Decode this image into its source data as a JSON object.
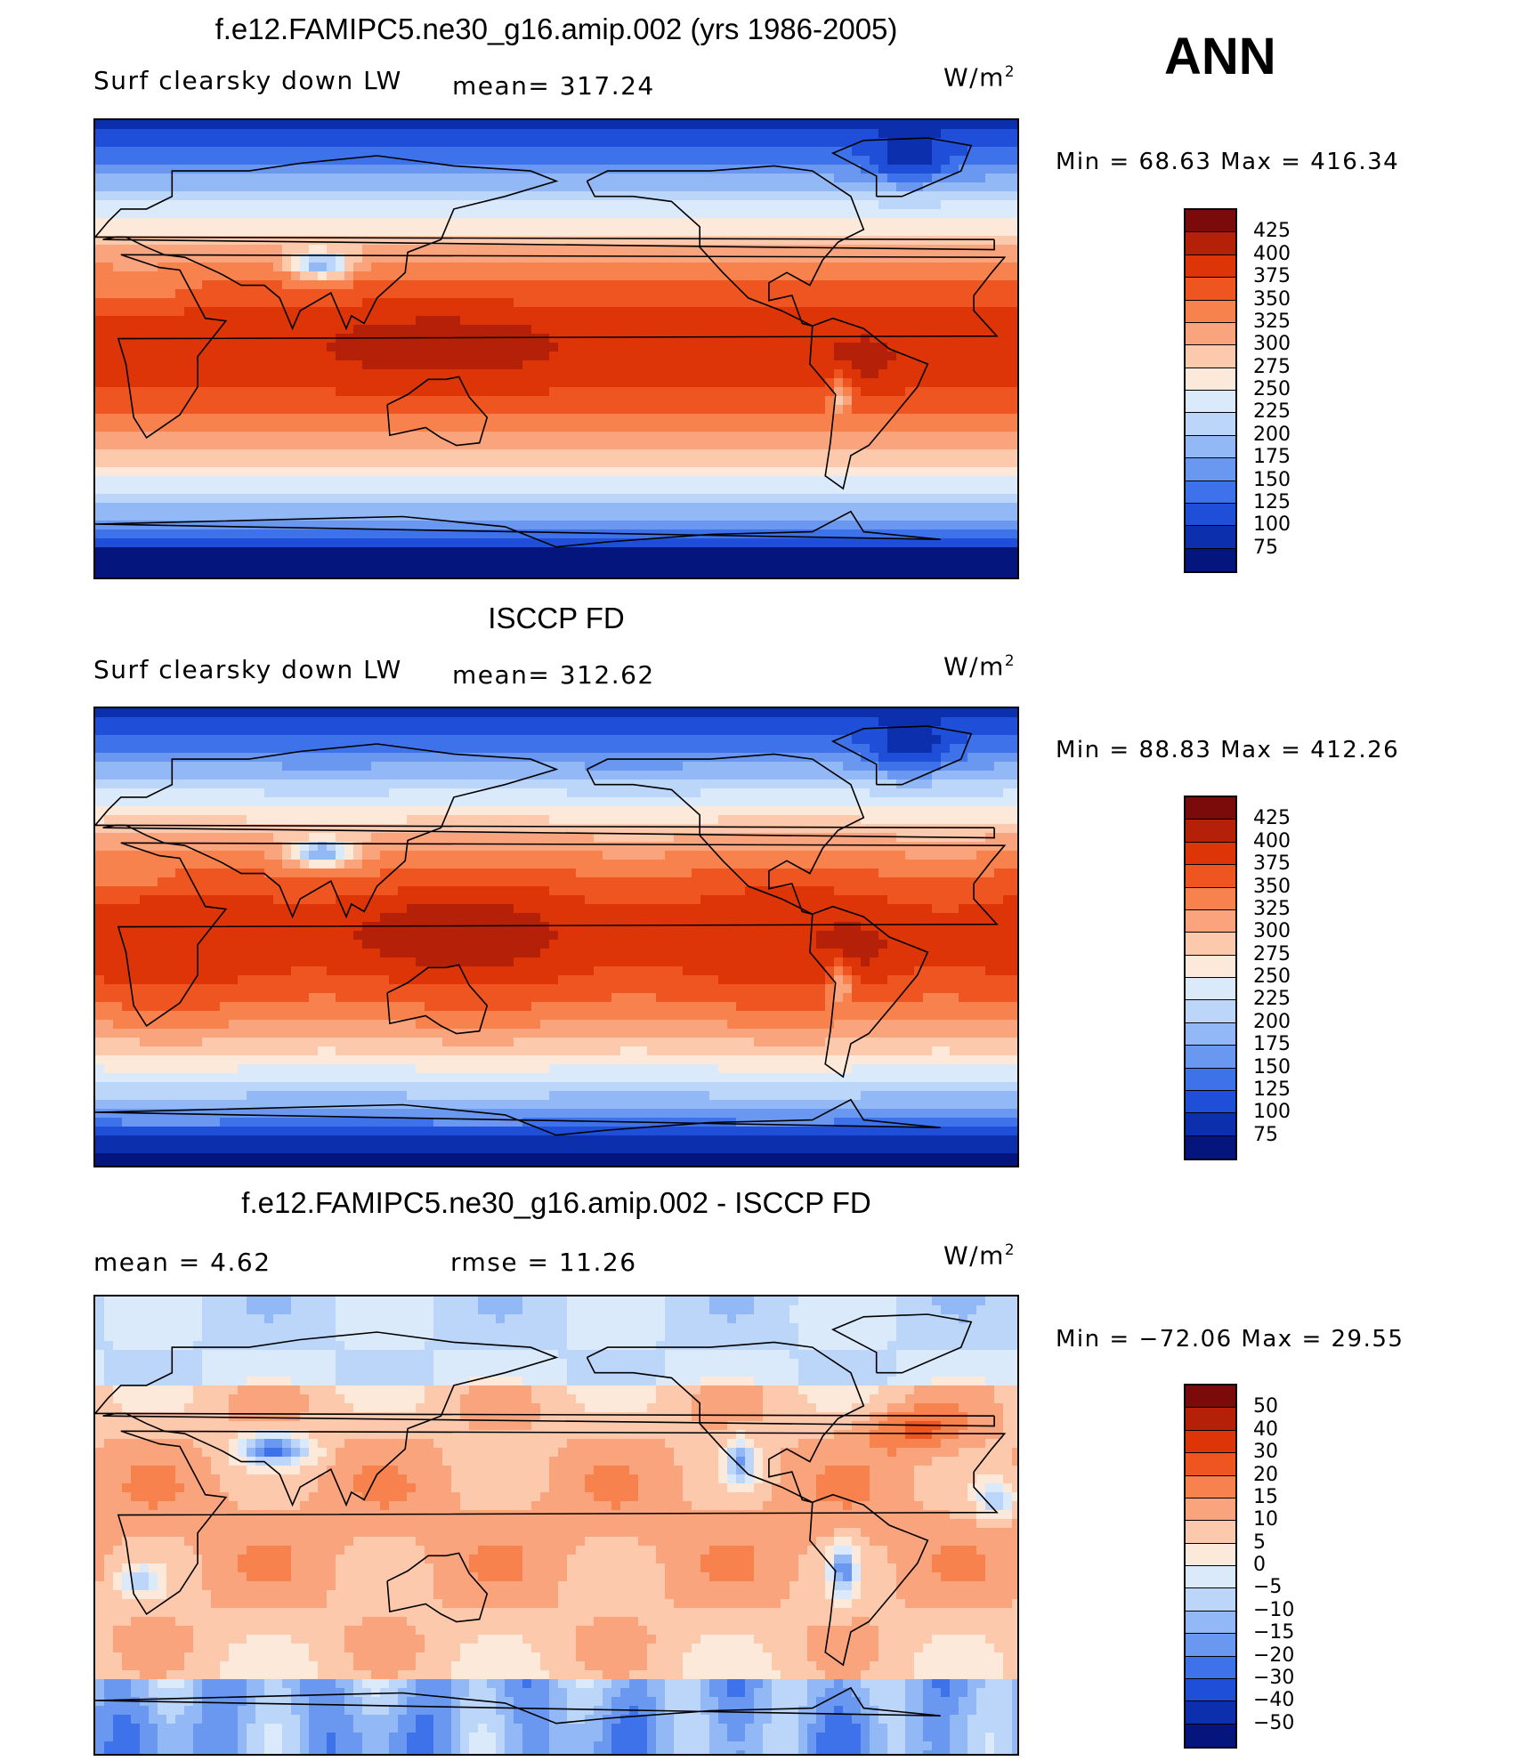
{
  "season": "ANN",
  "unit_base": "W/m",
  "unit_exp": "2",
  "panels": [
    {
      "title": "f.e12.FAMIPC5.ne30_g16.amip.002 (yrs 1986-2005)",
      "variable": "Surf clearsky down LW",
      "stat1": "mean= 317.24",
      "stat2": "",
      "minmax": "Min =   68.63 Max = 416.34",
      "levels": [
        "425",
        "400",
        "375",
        "350",
        "325",
        "300",
        "275",
        "250",
        "225",
        "200",
        "175",
        "150",
        "125",
        "100",
        "75"
      ],
      "colors": [
        "#7b0a0a",
        "#b52008",
        "#dd3408",
        "#ef5520",
        "#f7824e",
        "#f9a47d",
        "#fcc9ad",
        "#fde9da",
        "#dbeafb",
        "#bcd6f9",
        "#93b8f6",
        "#6a98f1",
        "#3d72ea",
        "#1f4fd8",
        "#0c2fae",
        "#05157e"
      ]
    },
    {
      "title": "ISCCP FD",
      "variable": "Surf clearsky down LW",
      "stat1": "mean= 312.62",
      "stat2": "",
      "minmax": "Min =   88.83 Max = 412.26",
      "levels": [
        "425",
        "400",
        "375",
        "350",
        "325",
        "300",
        "275",
        "250",
        "225",
        "200",
        "175",
        "150",
        "125",
        "100",
        "75"
      ],
      "colors": [
        "#7b0a0a",
        "#b52008",
        "#dd3408",
        "#ef5520",
        "#f7824e",
        "#f9a47d",
        "#fcc9ad",
        "#fde9da",
        "#dbeafb",
        "#bcd6f9",
        "#93b8f6",
        "#6a98f1",
        "#3d72ea",
        "#1f4fd8",
        "#0c2fae",
        "#05157e"
      ]
    },
    {
      "title": "f.e12.FAMIPC5.ne30_g16.amip.002 - ISCCP FD",
      "variable": "",
      "stat1": "mean =    4.62",
      "stat2": "rmse =   11.26",
      "minmax": "Min = −72.06 Max =   29.55",
      "levels": [
        "50",
        "40",
        "30",
        "20",
        "15",
        "10",
        "5",
        "0",
        "−5",
        "−10",
        "−15",
        "−20",
        "−30",
        "−40",
        "−50"
      ],
      "colors": [
        "#7b0a0a",
        "#b52008",
        "#dd3408",
        "#ef5520",
        "#f7824e",
        "#f9a47d",
        "#fcc9ad",
        "#fde9da",
        "#dbeafb",
        "#bcd6f9",
        "#93b8f6",
        "#6a98f1",
        "#3d72ea",
        "#1f4fd8",
        "#0c2fae",
        "#05157e"
      ]
    }
  ]
}
